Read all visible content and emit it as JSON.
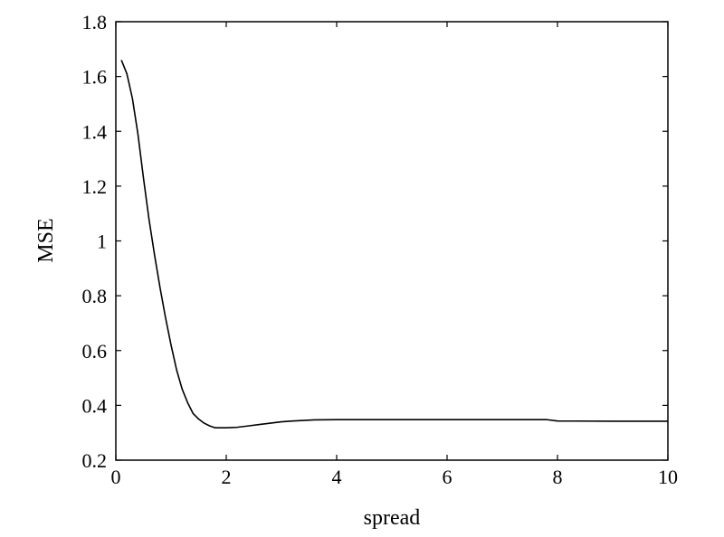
{
  "chart_data": {
    "type": "line",
    "xlabel": "spread",
    "ylabel": "MSE",
    "xlim": [
      0,
      10
    ],
    "ylim": [
      0.2,
      1.8
    ],
    "xticks": [
      0,
      2,
      4,
      6,
      8,
      10
    ],
    "yticks": [
      0.2,
      0.4,
      0.6,
      0.8,
      1,
      1.2,
      1.4,
      1.6,
      1.8
    ],
    "xtick_labels": [
      "0",
      "2",
      "4",
      "6",
      "8",
      "10"
    ],
    "ytick_labels": [
      "0.2",
      "0.4",
      "0.6",
      "0.8",
      "1",
      "1.2",
      "1.4",
      "1.6",
      "1.8"
    ],
    "grid": false,
    "line_color": "#000000",
    "series": [
      {
        "x": [
          0.1,
          0.2,
          0.3,
          0.4,
          0.5,
          0.6,
          0.7,
          0.8,
          0.9,
          1.0,
          1.1,
          1.2,
          1.3,
          1.4,
          1.5,
          1.6,
          1.7,
          1.8,
          2.0,
          2.2,
          2.4,
          2.6,
          2.8,
          3.0,
          3.2,
          3.4,
          3.6,
          4.0,
          5.0,
          6.0,
          7.0,
          7.8,
          8.0,
          9.0,
          10.0
        ],
        "y": [
          1.66,
          1.61,
          1.52,
          1.39,
          1.23,
          1.08,
          0.95,
          0.83,
          0.72,
          0.62,
          0.53,
          0.46,
          0.41,
          0.37,
          0.35,
          0.335,
          0.325,
          0.318,
          0.318,
          0.32,
          0.325,
          0.33,
          0.335,
          0.34,
          0.343,
          0.345,
          0.347,
          0.348,
          0.348,
          0.348,
          0.348,
          0.348,
          0.343,
          0.342,
          0.342
        ]
      }
    ]
  }
}
